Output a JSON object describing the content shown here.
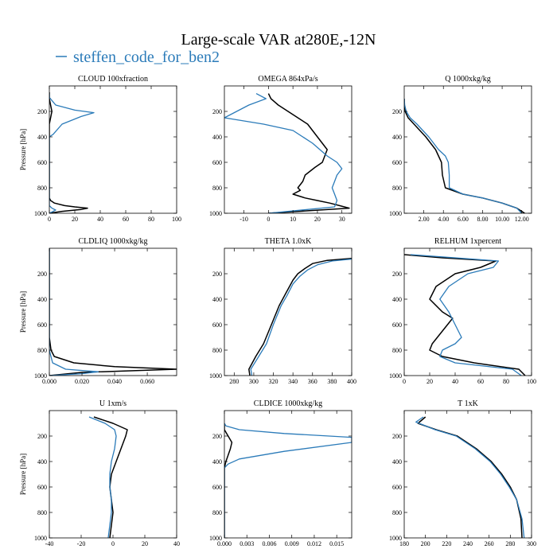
{
  "figure": {
    "title": "Large-scale VAR at280E,-12N",
    "legend": [
      {
        "label": "steffen_code_for_ben2",
        "color": "#2b7bb9"
      }
    ],
    "colors": {
      "series_a": "#000000",
      "series_b": "#2b7bb9"
    }
  },
  "chart_data": [
    {
      "type": "line",
      "title": "CLOUD  100xfraction",
      "ylabel": "Pressure [hPa]",
      "xlim": [
        0,
        100
      ],
      "ylim": [
        1000,
        0
      ],
      "y_inverted": true,
      "xticks": [
        0,
        20,
        40,
        60,
        80,
        100
      ],
      "xtick_labels": [
        "0",
        "20",
        "40",
        "60",
        "80",
        "100"
      ],
      "yticks": [
        200,
        400,
        600,
        800,
        1000
      ],
      "series": [
        {
          "color": "#000000",
          "x": [
            0,
            0,
            1,
            2,
            1,
            0,
            0,
            0,
            0,
            0,
            0,
            0,
            0,
            1,
            4,
            12,
            20,
            30,
            25,
            10,
            0
          ],
          "y": [
            50,
            100,
            150,
            200,
            250,
            300,
            400,
            500,
            600,
            700,
            800,
            850,
            880,
            900,
            920,
            940,
            950,
            960,
            970,
            985,
            1000
          ]
        },
        {
          "color": "#2b7bb9",
          "x": [
            0,
            0,
            5,
            20,
            35,
            25,
            10,
            3,
            0,
            0,
            0,
            0,
            0,
            0,
            0,
            2,
            5,
            2,
            0
          ],
          "y": [
            60,
            90,
            150,
            190,
            210,
            240,
            300,
            380,
            400,
            500,
            600,
            700,
            800,
            900,
            940,
            960,
            975,
            990,
            1000
          ]
        }
      ]
    },
    {
      "type": "line",
      "title": "OMEGA  864xPa/s",
      "ylabel": "",
      "xlim": [
        -18,
        34
      ],
      "ylim": [
        1000,
        0
      ],
      "y_inverted": true,
      "xticks": [
        -10,
        0,
        10,
        20,
        30
      ],
      "xtick_labels": [
        "-10",
        "0",
        "10",
        "20",
        "30"
      ],
      "yticks": [
        200,
        400,
        600,
        800,
        1000
      ],
      "series": [
        {
          "color": "#000000",
          "x": [
            0,
            1,
            4,
            8,
            12,
            16,
            20,
            24,
            22,
            19,
            15,
            14,
            12,
            13,
            10,
            15,
            20,
            25,
            29,
            33,
            0
          ],
          "y": [
            60,
            100,
            150,
            200,
            250,
            300,
            400,
            500,
            600,
            640,
            700,
            750,
            800,
            820,
            850,
            880,
            900,
            920,
            940,
            960,
            1000
          ]
        },
        {
          "color": "#2b7bb9",
          "x": [
            -5,
            -1,
            -8,
            -18,
            -2,
            10,
            18,
            24,
            28,
            30,
            28,
            27,
            26,
            27,
            28,
            27,
            0
          ],
          "y": [
            60,
            100,
            150,
            250,
            300,
            350,
            450,
            550,
            600,
            650,
            700,
            750,
            800,
            850,
            900,
            950,
            1000
          ]
        }
      ]
    },
    {
      "type": "line",
      "title": "Q  1000xkg/kg",
      "ylabel": "",
      "xlim": [
        0,
        13
      ],
      "ylim": [
        1000,
        0
      ],
      "y_inverted": true,
      "xticks": [
        2,
        4,
        6,
        8,
        10,
        12
      ],
      "xtick_labels": [
        "2.00",
        "4.00",
        "6.00",
        "8.00",
        "10.00",
        "12.00"
      ],
      "yticks": [
        200,
        400,
        600,
        800,
        1000
      ],
      "series": [
        {
          "color": "#000000",
          "x": [
            0,
            0.02,
            0.1,
            0.4,
            1,
            2.2,
            3.2,
            3.5,
            3.8,
            3.9,
            4.2,
            6,
            8,
            10,
            11.5,
            12.3
          ],
          "y": [
            100,
            150,
            200,
            250,
            300,
            400,
            500,
            550,
            600,
            700,
            800,
            850,
            880,
            920,
            960,
            1000
          ]
        },
        {
          "color": "#2b7bb9",
          "x": [
            0,
            0.05,
            0.2,
            0.6,
            1.3,
            2.5,
            3.5,
            4.2,
            4.5,
            4.6,
            4.6,
            6,
            8,
            10,
            11.5,
            12
          ],
          "y": [
            100,
            150,
            200,
            250,
            300,
            400,
            500,
            550,
            600,
            700,
            800,
            850,
            880,
            920,
            960,
            1000
          ]
        }
      ]
    },
    {
      "type": "line",
      "title": "CLDLIQ  1000xkg/kg",
      "ylabel": "Pressure [hPa]",
      "xlim": [
        0,
        0.078
      ],
      "ylim": [
        1000,
        0
      ],
      "y_inverted": true,
      "xticks": [
        0,
        0.02,
        0.04,
        0.06
      ],
      "xtick_labels": [
        "0.000",
        "0.020",
        "0.040",
        "0.060"
      ],
      "yticks": [
        200,
        400,
        600,
        800,
        1000
      ],
      "series": [
        {
          "color": "#000000",
          "x": [
            0,
            0,
            0,
            0,
            0.001,
            0.003,
            0.015,
            0.04,
            0.078,
            0.02,
            0
          ],
          "y": [
            0,
            200,
            400,
            700,
            800,
            850,
            900,
            930,
            950,
            975,
            1000
          ]
        },
        {
          "color": "#2b7bb9",
          "x": [
            0,
            0,
            0,
            0,
            0.002,
            0.01,
            0.03,
            0.02,
            0
          ],
          "y": [
            0,
            200,
            400,
            800,
            900,
            950,
            970,
            985,
            1000
          ]
        }
      ]
    },
    {
      "type": "line",
      "title": "THETA  1.0xK",
      "ylabel": "",
      "xlim": [
        270,
        400
      ],
      "ylim": [
        1000,
        0
      ],
      "y_inverted": true,
      "xticks": [
        280,
        300,
        320,
        340,
        360,
        380,
        400
      ],
      "xtick_labels": [
        "280",
        "300",
        "320",
        "340",
        "360",
        "380",
        "400"
      ],
      "yticks": [
        200,
        400,
        600,
        800,
        1000
      ],
      "series": [
        {
          "color": "#000000",
          "x": [
            400,
            375,
            360,
            352,
            345,
            340,
            333,
            326,
            318,
            310,
            302,
            295,
            296
          ],
          "y": [
            80,
            95,
            120,
            160,
            200,
            250,
            350,
            450,
            600,
            750,
            850,
            950,
            1000
          ]
        },
        {
          "color": "#2b7bb9",
          "x": [
            400,
            380,
            365,
            355,
            347,
            340,
            334,
            328,
            320,
            313,
            305,
            297,
            298
          ],
          "y": [
            85,
            100,
            130,
            170,
            220,
            280,
            370,
            450,
            600,
            750,
            850,
            950,
            1000
          ]
        }
      ]
    },
    {
      "type": "line",
      "title": "RELHUM  1xpercent",
      "ylabel": "",
      "xlim": [
        0,
        100
      ],
      "ylim": [
        1000,
        0
      ],
      "y_inverted": true,
      "xticks": [
        0,
        20,
        40,
        60,
        80,
        100
      ],
      "xtick_labels": [
        "0",
        "20",
        "40",
        "60",
        "80",
        "100"
      ],
      "yticks": [
        200,
        400,
        600,
        800,
        1000
      ],
      "series": [
        {
          "color": "#000000",
          "x": [
            0,
            30,
            72,
            60,
            40,
            25,
            20,
            30,
            38,
            30,
            22,
            20,
            30,
            55,
            90,
            95
          ],
          "y": [
            50,
            75,
            100,
            150,
            200,
            300,
            400,
            500,
            550,
            650,
            750,
            800,
            850,
            900,
            950,
            1000
          ]
        },
        {
          "color": "#2b7bb9",
          "x": [
            5,
            40,
            74,
            70,
            50,
            35,
            28,
            35,
            40,
            45,
            40,
            30,
            28,
            40,
            85,
            92
          ],
          "y": [
            50,
            75,
            100,
            150,
            200,
            300,
            400,
            500,
            600,
            700,
            750,
            800,
            850,
            900,
            950,
            1000
          ]
        }
      ]
    },
    {
      "type": "line",
      "title": "U  1xm/s",
      "ylabel": "Pressure [hPa]",
      "xlim": [
        -40,
        40
      ],
      "ylim": [
        1000,
        0
      ],
      "y_inverted": true,
      "xticks": [
        -40,
        -20,
        0,
        20,
        40
      ],
      "xtick_labels": [
        "-40",
        "-20",
        "0",
        "20",
        "40"
      ],
      "yticks": [
        200,
        400,
        600,
        800,
        1000
      ],
      "series": [
        {
          "color": "#000000",
          "x": [
            -12,
            0,
            9,
            8,
            5,
            2,
            -1,
            -2,
            -1,
            0,
            -1,
            -2
          ],
          "y": [
            50,
            100,
            150,
            200,
            300,
            400,
            500,
            600,
            700,
            800,
            900,
            1000
          ]
        },
        {
          "color": "#2b7bb9",
          "x": [
            -15,
            -5,
            1,
            2,
            1,
            -1,
            -2,
            -2,
            -1,
            -1,
            -2,
            -3
          ],
          "y": [
            50,
            100,
            150,
            200,
            300,
            400,
            500,
            600,
            700,
            800,
            900,
            1000
          ]
        }
      ]
    },
    {
      "type": "line",
      "title": "CLDICE  1000xkg/kg",
      "ylabel": "",
      "xlim": [
        0,
        0.017
      ],
      "ylim": [
        1000,
        0
      ],
      "y_inverted": true,
      "xticks": [
        0,
        0.003,
        0.006,
        0.009,
        0.012,
        0.015
      ],
      "xtick_labels": [
        "0.000",
        "0.003",
        "0.006",
        "0.009",
        "0.012",
        "0.015"
      ],
      "yticks": [
        200,
        400,
        600,
        800,
        1000
      ],
      "series": [
        {
          "color": "#000000",
          "x": [
            0,
            0,
            0.0005,
            0.001,
            0.0008,
            0.0005,
            0.0002,
            0,
            0,
            0
          ],
          "y": [
            100,
            150,
            200,
            250,
            300,
            350,
            400,
            450,
            600,
            1000
          ]
        },
        {
          "color": "#2b7bb9",
          "x": [
            0,
            0.0002,
            0.002,
            0.008,
            0.017,
            0.017,
            0.008,
            0.002,
            0.0005,
            0,
            0,
            0
          ],
          "y": [
            100,
            120,
            150,
            180,
            210,
            250,
            320,
            380,
            420,
            450,
            600,
            1000
          ]
        }
      ]
    },
    {
      "type": "line",
      "title": "T  1xK",
      "ylabel": "",
      "xlim": [
        180,
        300
      ],
      "ylim": [
        1000,
        0
      ],
      "y_inverted": true,
      "xticks": [
        180,
        200,
        220,
        240,
        260,
        280,
        300
      ],
      "xtick_labels": [
        "180",
        "200",
        "220",
        "240",
        "260",
        "280",
        "300"
      ],
      "yticks": [
        200,
        400,
        600,
        800,
        1000
      ],
      "series": [
        {
          "color": "#000000",
          "x": [
            200,
            193,
            210,
            230,
            248,
            262,
            272,
            280,
            286,
            290,
            291
          ],
          "y": [
            50,
            100,
            150,
            200,
            300,
            400,
            500,
            600,
            700,
            850,
            1000
          ]
        },
        {
          "color": "#2b7bb9",
          "x": [
            198,
            191,
            209,
            229,
            247,
            261,
            271,
            279,
            286,
            291,
            293
          ],
          "y": [
            50,
            90,
            150,
            200,
            300,
            400,
            500,
            600,
            700,
            850,
            1000
          ]
        }
      ]
    }
  ]
}
